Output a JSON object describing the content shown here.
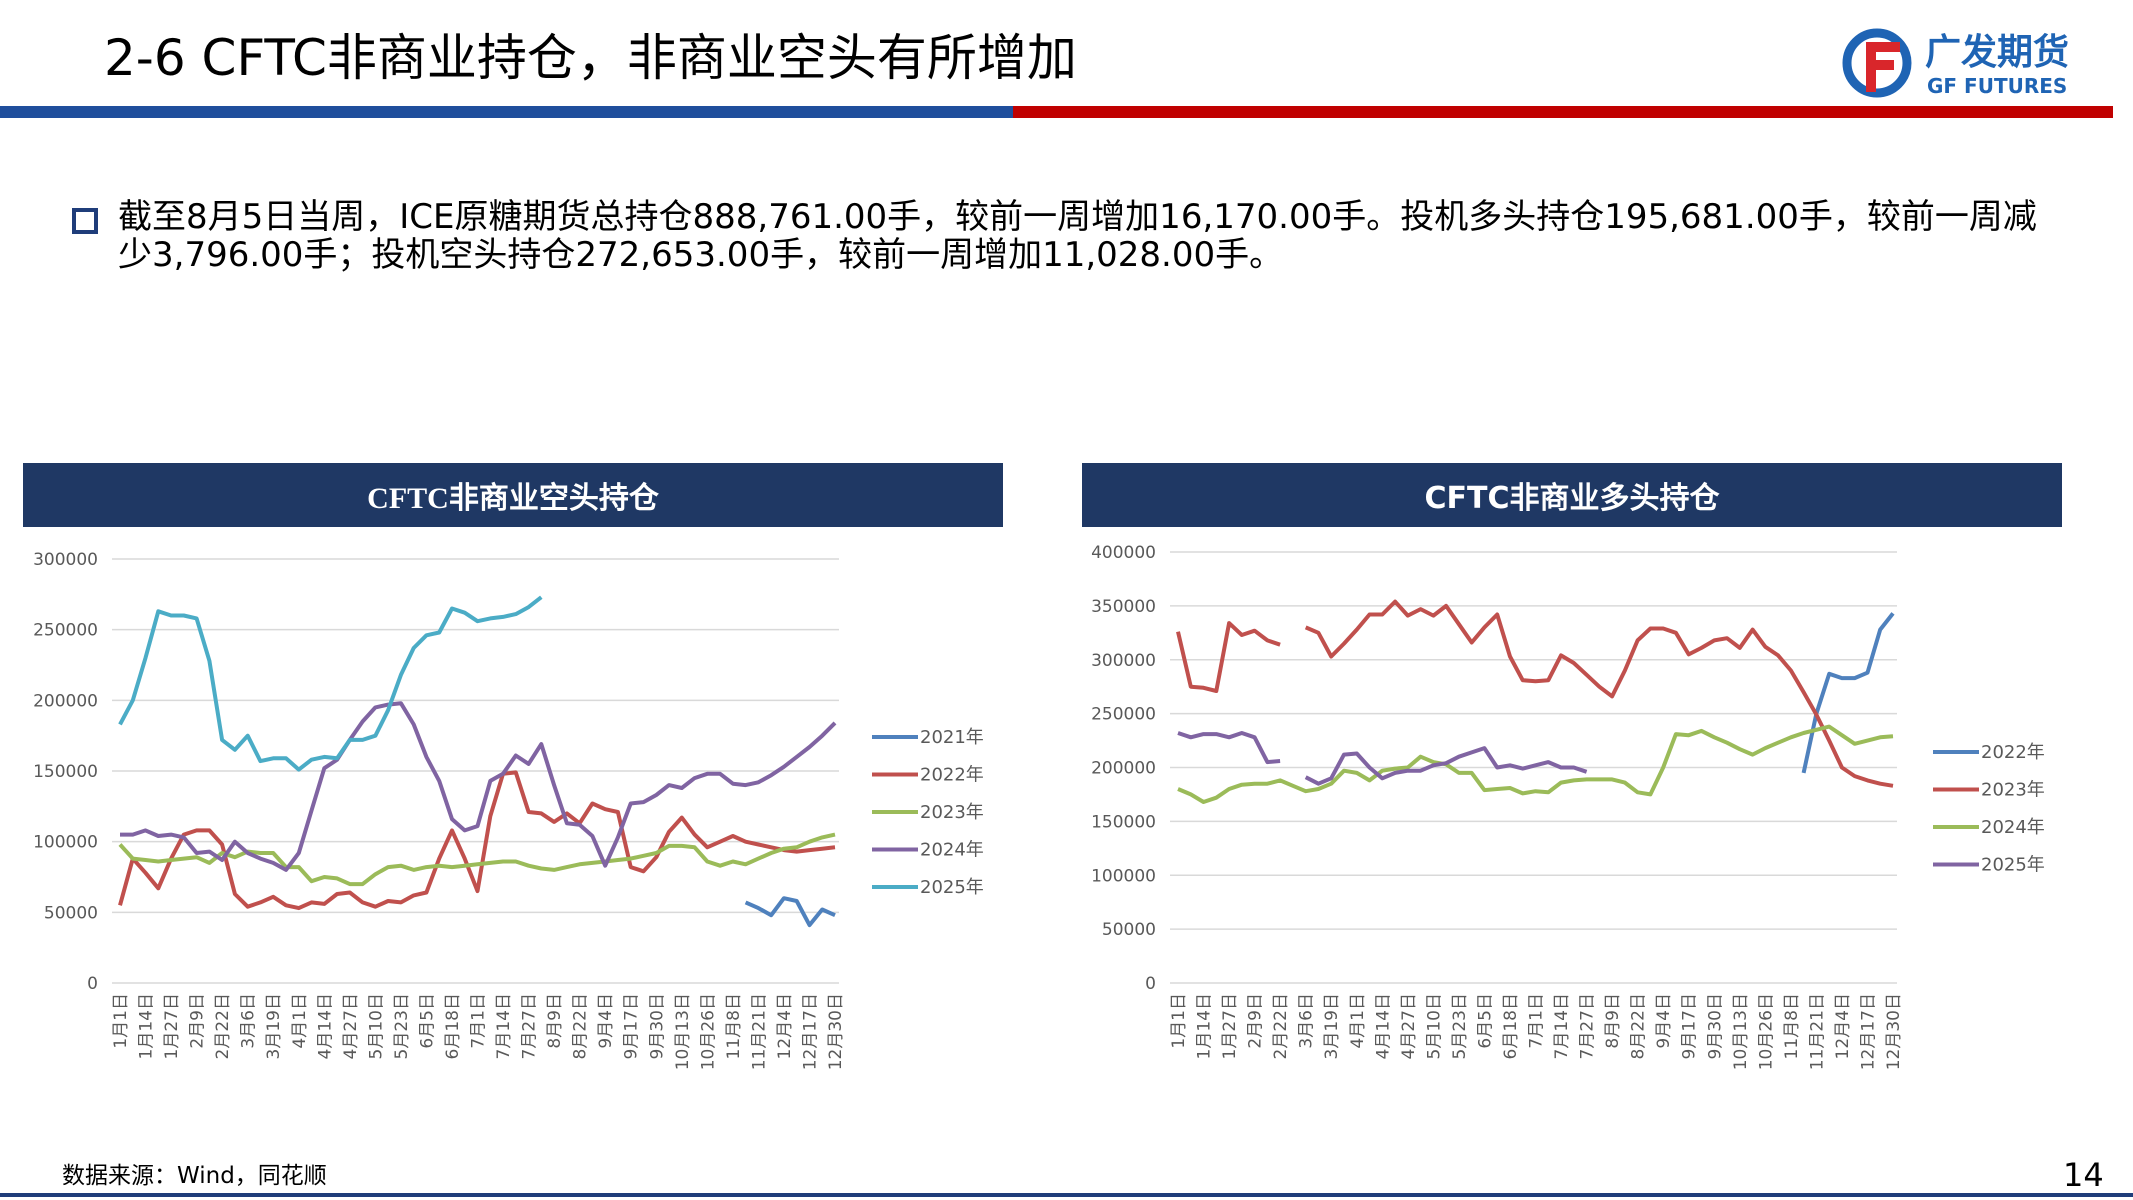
{
  "header": {
    "title": "2-6 CFTC非商业持仓，非商业空头有所增加",
    "logo_cn": "广发期货",
    "logo_en": "GF FUTURES"
  },
  "summary": "截至8月5日当周，ICE原糖期货总持仓888,761.00手，较前一周增加16,170.00手。投机多头持仓195,681.00手，较前一周减少3,796.00手；投机空头持仓272,653.00手，较前一周增加11,028.00手。",
  "footer": {
    "source": "数据来源：Wind，同花顺",
    "page": 14
  },
  "chart_data": [
    {
      "type": "line",
      "title": "CFTC非商业空头持仓",
      "categories": [
        "1月1日",
        null,
        "1月14日",
        null,
        "1月27日",
        null,
        "2月9日",
        null,
        "2月22日",
        null,
        "3月6日",
        null,
        "3月19日",
        null,
        "4月1日",
        null,
        "4月14日",
        null,
        "4月27日",
        null,
        "5月10日",
        null,
        "5月23日",
        null,
        "6月5日",
        null,
        "6月18日",
        null,
        "7月1日",
        null,
        "7月14日",
        null,
        "7月27日",
        null,
        "8月9日",
        null,
        "8月22日",
        null,
        "9月4日",
        null,
        "9月17日",
        null,
        "9月30日",
        null,
        "10月13日",
        null,
        "10月26日",
        null,
        "11月8日",
        null,
        "11月21日",
        null,
        "12月4日",
        null,
        "12月17日",
        null,
        "12月30日"
      ],
      "ylim": [
        0,
        300000
      ],
      "yticks": [
        0,
        50000,
        100000,
        150000,
        200000,
        250000,
        300000
      ],
      "grid": true,
      "series": [
        {
          "name": "2021年",
          "color": "#4f81bd",
          "values": [
            null,
            null,
            null,
            null,
            null,
            null,
            null,
            null,
            null,
            null,
            null,
            null,
            null,
            null,
            null,
            null,
            null,
            null,
            null,
            null,
            null,
            null,
            null,
            null,
            null,
            null,
            null,
            null,
            null,
            null,
            null,
            null,
            null,
            null,
            null,
            null,
            null,
            null,
            null,
            null,
            null,
            null,
            null,
            null,
            null,
            null,
            null,
            null,
            null,
            57000,
            53000,
            48000,
            60000,
            58000,
            41000,
            52000,
            48000
          ]
        },
        {
          "name": "2022年",
          "color": "#c0504d",
          "values": [
            55000,
            88000,
            78000,
            67000,
            88000,
            105000,
            108000,
            108000,
            98000,
            63000,
            54000,
            57000,
            61000,
            55000,
            53000,
            57000,
            56000,
            63000,
            64000,
            57000,
            54000,
            58000,
            57000,
            62000,
            64000,
            88000,
            108000,
            88000,
            65000,
            118000,
            148000,
            149000,
            121000,
            120000,
            114000,
            120000,
            113000,
            127000,
            123000,
            121000,
            82000,
            79000,
            89000,
            107000,
            117000,
            105000,
            96000,
            100000,
            104000,
            100000,
            98000,
            96000,
            94000,
            93000,
            94000,
            95000,
            96000
          ]
        },
        {
          "name": "2023年",
          "color": "#9bbb59",
          "values": [
            98000,
            88000,
            87000,
            86000,
            87000,
            88000,
            89000,
            85000,
            92000,
            89000,
            93000,
            92000,
            92000,
            82000,
            82000,
            72000,
            75000,
            74000,
            70000,
            70000,
            77000,
            82000,
            83000,
            80000,
            82000,
            83000,
            82000,
            83000,
            84000,
            85000,
            86000,
            86000,
            83000,
            81000,
            80000,
            82000,
            84000,
            85000,
            86000,
            87000,
            88000,
            90000,
            92000,
            97000,
            97000,
            96000,
            86000,
            83000,
            86000,
            84000,
            88000,
            92000,
            95000,
            96000,
            100000,
            103000,
            105000
          ]
        },
        {
          "name": "2024年",
          "color": "#8064a2",
          "values": [
            105000,
            105000,
            108000,
            104000,
            105000,
            103000,
            92000,
            93000,
            87000,
            100000,
            92000,
            88000,
            85000,
            80000,
            92000,
            122000,
            152000,
            158000,
            172000,
            185000,
            195000,
            197000,
            198000,
            183000,
            160000,
            143000,
            116000,
            108000,
            111000,
            143000,
            148000,
            161000,
            155000,
            169000,
            140000,
            113000,
            112000,
            104000,
            83000,
            103000,
            127000,
            128000,
            133000,
            140000,
            138000,
            145000,
            148000,
            148000,
            141000,
            140000,
            142000,
            147000,
            153000,
            160000,
            167000,
            175000,
            184000
          ]
        },
        {
          "name": "2025年",
          "color": "#4bacc6",
          "values": [
            183000,
            200000,
            230000,
            263000,
            260000,
            260000,
            258000,
            228000,
            172000,
            165000,
            175000,
            157000,
            159000,
            159000,
            151000,
            158000,
            160000,
            159000,
            172000,
            172000,
            175000,
            193000,
            218000,
            237000,
            246000,
            248000,
            265000,
            262000,
            256000,
            258000,
            259000,
            261000,
            266000,
            273000,
            null,
            null,
            null,
            null,
            null,
            null,
            null,
            null,
            null,
            null,
            null,
            null,
            null,
            null,
            null,
            null,
            null,
            null,
            null,
            null,
            null,
            null,
            null
          ]
        }
      ]
    },
    {
      "type": "line",
      "title": "CFTC非商业多头持仓",
      "categories": [
        "1月1日",
        null,
        "1月14日",
        null,
        "1月27日",
        null,
        "2月9日",
        null,
        "2月22日",
        null,
        "3月6日",
        null,
        "3月19日",
        null,
        "4月1日",
        null,
        "4月14日",
        null,
        "4月27日",
        null,
        "5月10日",
        null,
        "5月23日",
        null,
        "6月5日",
        null,
        "6月18日",
        null,
        "7月1日",
        null,
        "7月14日",
        null,
        "7月27日",
        null,
        "8月9日",
        null,
        "8月22日",
        null,
        "9月4日",
        null,
        "9月17日",
        null,
        "9月30日",
        null,
        "10月13日",
        null,
        "10月26日",
        null,
        "11月8日",
        null,
        "11月21日",
        null,
        "12月4日",
        null,
        "12月17日",
        null,
        "12月30日"
      ],
      "ylim": [
        0,
        400000
      ],
      "yticks": [
        0,
        50000,
        100000,
        150000,
        200000,
        250000,
        300000,
        350000,
        400000
      ],
      "grid": true,
      "series": [
        {
          "name": "2022年",
          "color": "#4f81bd",
          "values": [
            null,
            null,
            null,
            null,
            null,
            null,
            null,
            null,
            null,
            null,
            null,
            null,
            null,
            null,
            null,
            null,
            null,
            null,
            null,
            null,
            null,
            null,
            null,
            null,
            null,
            null,
            null,
            null,
            null,
            null,
            null,
            null,
            null,
            null,
            null,
            null,
            null,
            null,
            null,
            null,
            null,
            null,
            null,
            null,
            null,
            null,
            null,
            null,
            null,
            195000,
            250000,
            287000,
            283000,
            283000,
            288000,
            328000,
            343000
          ]
        },
        {
          "name": "2023年",
          "color": "#c0504d",
          "values": [
            326000,
            275000,
            274000,
            271000,
            334000,
            323000,
            327000,
            318000,
            314000,
            null,
            330000,
            325000,
            303000,
            315000,
            328000,
            342000,
            342000,
            354000,
            341000,
            347000,
            341000,
            350000,
            333000,
            316000,
            330000,
            342000,
            303000,
            281000,
            280000,
            281000,
            304000,
            297000,
            286000,
            275000,
            266000,
            290000,
            318000,
            329000,
            329000,
            325000,
            305000,
            311000,
            318000,
            320000,
            311000,
            328000,
            312000,
            304000,
            290000,
            270000,
            249000,
            225000,
            200000,
            192000,
            188000,
            185000,
            183000
          ]
        },
        {
          "name": "2024年",
          "color": "#9bbb59",
          "values": [
            180000,
            175000,
            168000,
            172000,
            180000,
            184000,
            185000,
            185000,
            188000,
            183000,
            178000,
            180000,
            185000,
            197000,
            195000,
            188000,
            197000,
            199000,
            200000,
            210000,
            205000,
            203000,
            195000,
            195000,
            179000,
            180000,
            181000,
            176000,
            178000,
            177000,
            186000,
            188000,
            189000,
            189000,
            189000,
            186000,
            177000,
            175000,
            200000,
            231000,
            230000,
            234000,
            228000,
            223000,
            217000,
            212000,
            218000,
            223000,
            228000,
            232000,
            235000,
            238000,
            230000,
            222000,
            225000,
            228000,
            229000
          ]
        },
        {
          "name": "2025年",
          "color": "#8064a2",
          "values": [
            232000,
            228000,
            231000,
            231000,
            228000,
            232000,
            228000,
            205000,
            206000,
            null,
            191000,
            185000,
            190000,
            212000,
            213000,
            200000,
            190000,
            195000,
            197000,
            197000,
            202000,
            204000,
            210000,
            214000,
            218000,
            200000,
            202000,
            199000,
            202000,
            205000,
            200000,
            200000,
            196000,
            null,
            null,
            null,
            null,
            null,
            null,
            null,
            null,
            null,
            null,
            null,
            null,
            null,
            null,
            null,
            null,
            null,
            null,
            null,
            null,
            null,
            null,
            null,
            null
          ]
        }
      ]
    }
  ]
}
